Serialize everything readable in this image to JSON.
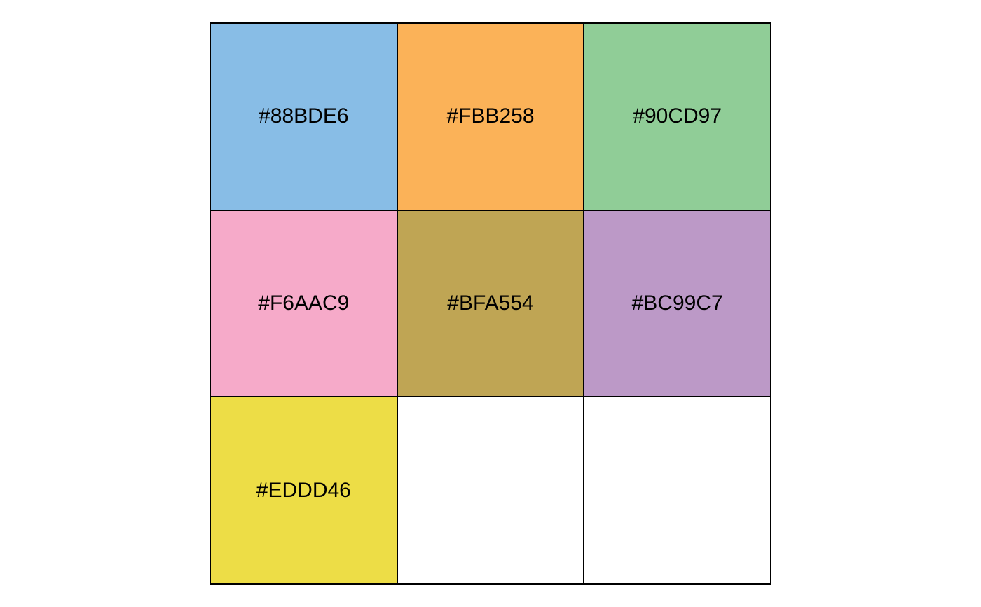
{
  "palette": {
    "swatches": [
      {
        "label": "#88BDE6",
        "color": "#88BDE6"
      },
      {
        "label": "#FBB258",
        "color": "#FBB258"
      },
      {
        "label": "#90CD97",
        "color": "#90CD97"
      },
      {
        "label": "#F6AAC9",
        "color": "#F6AAC9"
      },
      {
        "label": "#BFA554",
        "color": "#BFA554"
      },
      {
        "label": "#BC99C7",
        "color": "#BC99C7"
      },
      {
        "label": "#EDDD46",
        "color": "#EDDD46"
      },
      {
        "label": "",
        "color": "#FFFFFF"
      },
      {
        "label": "",
        "color": "#FFFFFF"
      }
    ]
  }
}
